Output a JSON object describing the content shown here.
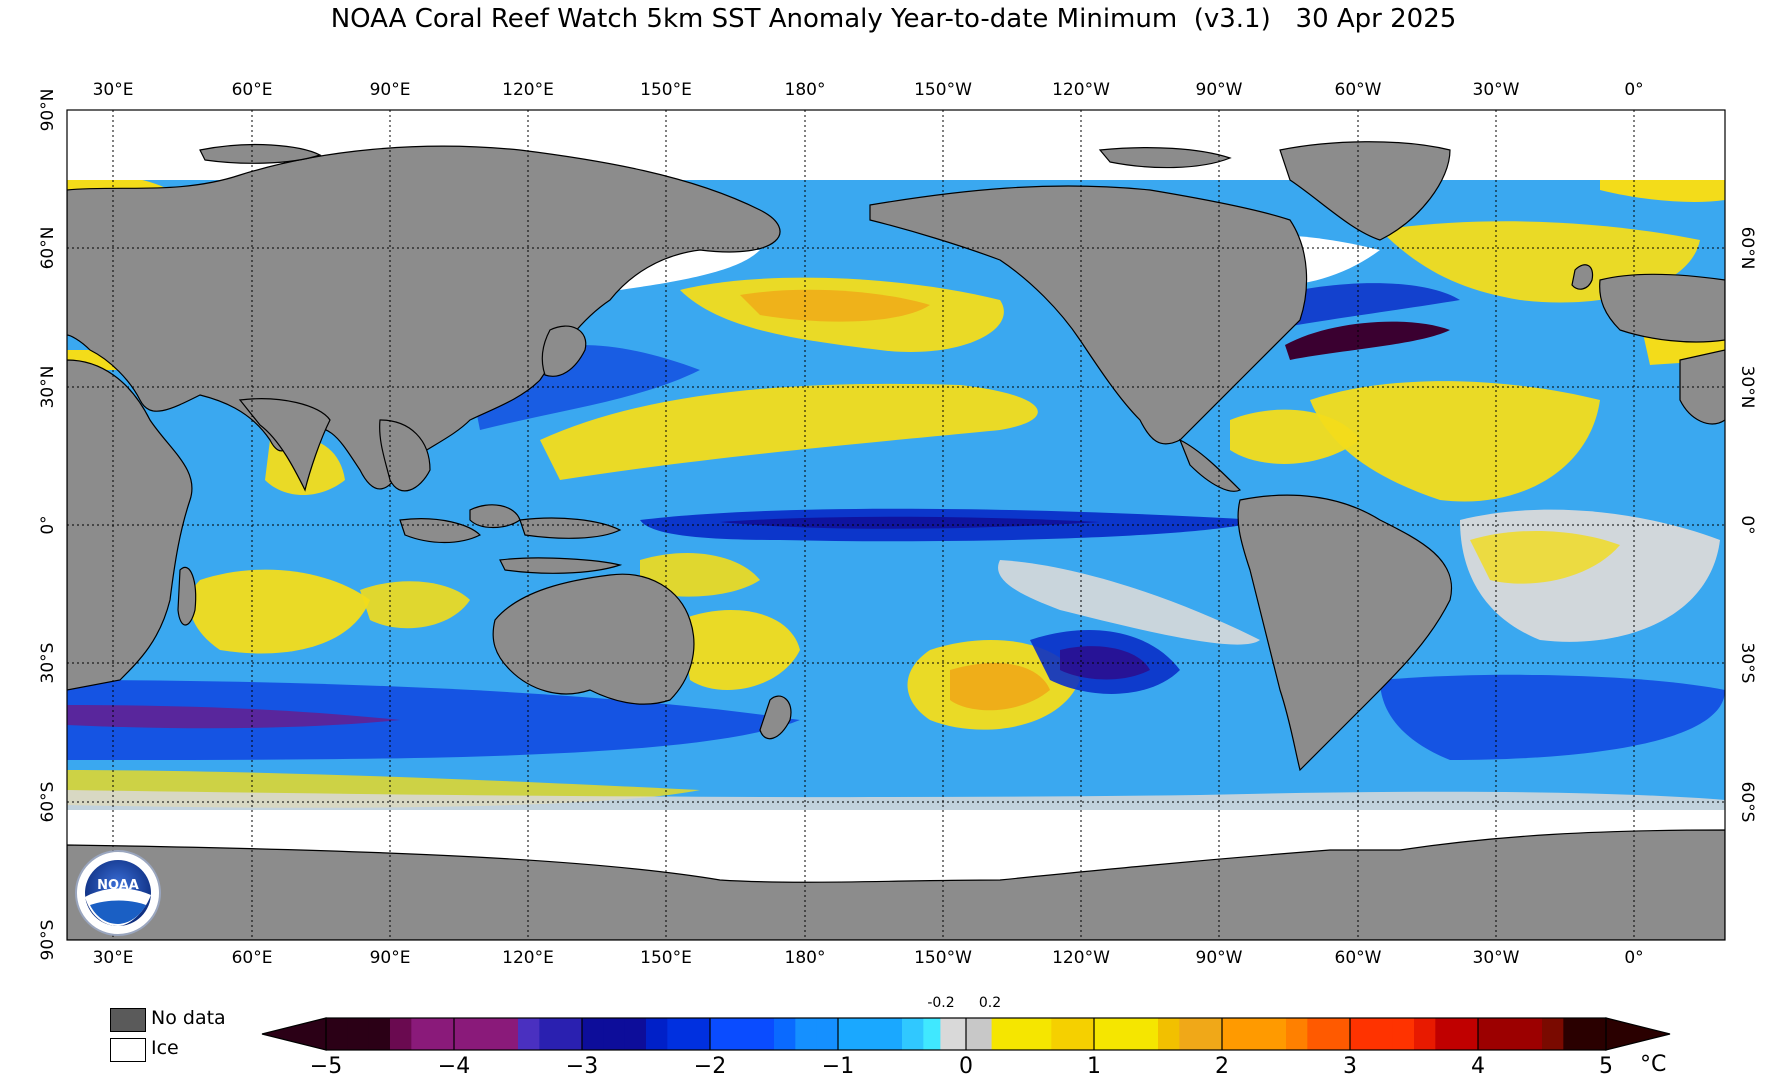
{
  "title": "NOAA Coral Reef Watch 5km SST Anomaly Year-to-date Minimum  (v3.1)   30 Apr 2025",
  "longitude_labels": [
    "30°E",
    "60°E",
    "90°E",
    "120°E",
    "150°E",
    "180°",
    "150°W",
    "120°W",
    "90°W",
    "60°W",
    "30°W",
    "0°"
  ],
  "latitude_labels": [
    "90°N",
    "60°N",
    "30°N",
    "0°",
    "30°S",
    "60°S",
    "90°S"
  ],
  "legend": {
    "no_data_label": "No data",
    "no_data_color": "#5a5a5a",
    "ice_label": "Ice",
    "ice_color": "#ffffff"
  },
  "colorbar": {
    "tick_labels": [
      "−5",
      "−4",
      "−3",
      "−2",
      "−1",
      "0",
      "1",
      "2",
      "3",
      "4",
      "5"
    ],
    "near_zero_labels": [
      "-0.2",
      "0.2"
    ],
    "unit": "°C",
    "colors": {
      "minus5": "#2b0016",
      "minus4": "#8a1a7a",
      "minus3": "#0d0d9a",
      "minus2": "#0a4cff",
      "minus1": "#1aa8ff",
      "zero_band": "#d9d9d9",
      "plus1": "#f5e600",
      "plus2": "#ff9a00",
      "plus3": "#ff3300",
      "plus4": "#9c0000",
      "plus5": "#2a0000"
    }
  },
  "map_colors": {
    "land": "#8c8c8c",
    "ice": "#ffffff",
    "ocean_base": "#3aa8f0"
  },
  "logo": {
    "text": "NOAA"
  }
}
